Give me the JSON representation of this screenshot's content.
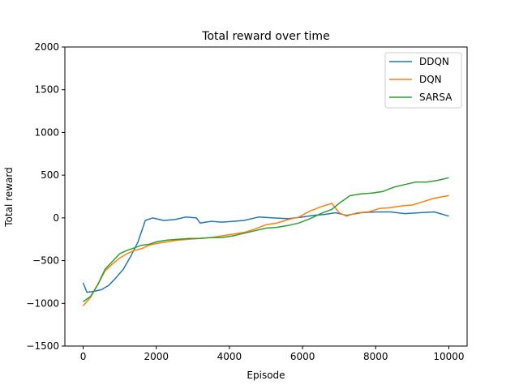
{
  "chart_data": {
    "type": "line",
    "title": "Total reward over time",
    "xlabel": "Episode",
    "ylabel": "Total reward",
    "xlim": [
      -500,
      10500
    ],
    "ylim": [
      -1500,
      2000
    ],
    "xticks": [
      0,
      2000,
      4000,
      6000,
      8000,
      10000
    ],
    "yticks": [
      -1500,
      -1000,
      -500,
      0,
      500,
      1000,
      1500,
      2000
    ],
    "grid": false,
    "legend_position": "top-right",
    "series": [
      {
        "name": "DDQN",
        "color": "#1f77b4",
        "points": [
          [
            0,
            -760
          ],
          [
            100,
            -870
          ],
          [
            300,
            -860
          ],
          [
            500,
            -840
          ],
          [
            700,
            -790
          ],
          [
            900,
            -700
          ],
          [
            1100,
            -600
          ],
          [
            1300,
            -450
          ],
          [
            1500,
            -280
          ],
          [
            1700,
            -30
          ],
          [
            1900,
            0
          ],
          [
            2200,
            -30
          ],
          [
            2500,
            -20
          ],
          [
            2800,
            10
          ],
          [
            3100,
            0
          ],
          [
            3200,
            -60
          ],
          [
            3500,
            -40
          ],
          [
            3800,
            -50
          ],
          [
            4100,
            -40
          ],
          [
            4400,
            -30
          ],
          [
            4800,
            10
          ],
          [
            5200,
            0
          ],
          [
            5600,
            -10
          ],
          [
            6000,
            10
          ],
          [
            6300,
            30
          ],
          [
            6600,
            40
          ],
          [
            6900,
            60
          ],
          [
            7200,
            30
          ],
          [
            7600,
            60
          ],
          [
            8000,
            70
          ],
          [
            8400,
            70
          ],
          [
            8800,
            50
          ],
          [
            9200,
            60
          ],
          [
            9600,
            70
          ],
          [
            10000,
            20
          ]
        ]
      },
      {
        "name": "DQN",
        "color": "#ff7f0e",
        "points": [
          [
            0,
            -1030
          ],
          [
            200,
            -930
          ],
          [
            400,
            -780
          ],
          [
            600,
            -620
          ],
          [
            800,
            -540
          ],
          [
            1000,
            -470
          ],
          [
            1200,
            -420
          ],
          [
            1400,
            -380
          ],
          [
            1600,
            -360
          ],
          [
            1800,
            -320
          ],
          [
            2000,
            -300
          ],
          [
            2300,
            -280
          ],
          [
            2600,
            -260
          ],
          [
            2900,
            -250
          ],
          [
            3200,
            -240
          ],
          [
            3500,
            -230
          ],
          [
            3800,
            -210
          ],
          [
            4100,
            -190
          ],
          [
            4400,
            -170
          ],
          [
            4700,
            -130
          ],
          [
            5000,
            -80
          ],
          [
            5300,
            -60
          ],
          [
            5600,
            -20
          ],
          [
            5900,
            10
          ],
          [
            6200,
            80
          ],
          [
            6500,
            130
          ],
          [
            6800,
            170
          ],
          [
            7000,
            60
          ],
          [
            7200,
            20
          ],
          [
            7500,
            60
          ],
          [
            7800,
            70
          ],
          [
            8100,
            110
          ],
          [
            8400,
            120
          ],
          [
            8700,
            140
          ],
          [
            9000,
            150
          ],
          [
            9300,
            190
          ],
          [
            9600,
            230
          ],
          [
            10000,
            260
          ]
        ]
      },
      {
        "name": "SARSA",
        "color": "#2ca02c",
        "points": [
          [
            0,
            -980
          ],
          [
            200,
            -920
          ],
          [
            400,
            -780
          ],
          [
            600,
            -600
          ],
          [
            800,
            -510
          ],
          [
            1000,
            -420
          ],
          [
            1200,
            -380
          ],
          [
            1400,
            -350
          ],
          [
            1600,
            -320
          ],
          [
            1800,
            -310
          ],
          [
            2000,
            -280
          ],
          [
            2300,
            -260
          ],
          [
            2600,
            -250
          ],
          [
            2900,
            -240
          ],
          [
            3200,
            -240
          ],
          [
            3500,
            -230
          ],
          [
            3800,
            -230
          ],
          [
            4100,
            -210
          ],
          [
            4400,
            -180
          ],
          [
            4700,
            -150
          ],
          [
            5000,
            -120
          ],
          [
            5300,
            -110
          ],
          [
            5600,
            -90
          ],
          [
            5900,
            -60
          ],
          [
            6200,
            -10
          ],
          [
            6500,
            50
          ],
          [
            6800,
            100
          ],
          [
            7000,
            170
          ],
          [
            7300,
            260
          ],
          [
            7600,
            280
          ],
          [
            7900,
            290
          ],
          [
            8200,
            310
          ],
          [
            8500,
            360
          ],
          [
            8800,
            390
          ],
          [
            9100,
            420
          ],
          [
            9400,
            420
          ],
          [
            9700,
            440
          ],
          [
            10000,
            470
          ]
        ]
      }
    ]
  }
}
